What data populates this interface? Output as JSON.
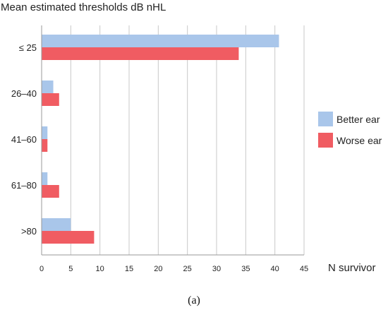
{
  "chart_data": {
    "type": "bar",
    "orientation": "horizontal",
    "ylabel": "Mean estimated thresholds dB nHL",
    "xlabel": "N survivor",
    "categories": [
      "≤ 25",
      "26–40",
      "41–60",
      "61–80",
      ">80"
    ],
    "series": [
      {
        "name": "Better ear",
        "color": "#a9c6ea",
        "values": [
          40.7,
          2,
          1,
          1,
          5
        ]
      },
      {
        "name": "Worse ear",
        "color": "#f05c62",
        "values": [
          33.8,
          3,
          1,
          3,
          9
        ]
      }
    ],
    "xlim": [
      0,
      45
    ],
    "xticks": [
      "0",
      "5",
      "10",
      "15",
      "20",
      "25",
      "30",
      "35",
      "40",
      "45"
    ],
    "grid": true,
    "legend_position": "right",
    "caption": "(a)"
  }
}
